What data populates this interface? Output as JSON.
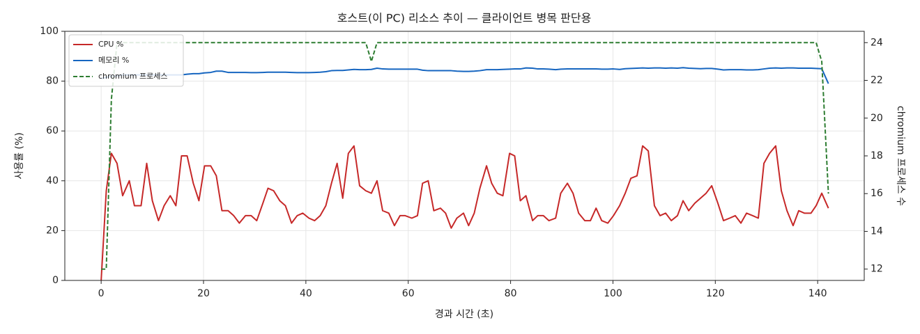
{
  "chart_data": {
    "type": "line",
    "title": "호스트(이 PC) 리소스 추이 — 클라이언트 병목 판단용",
    "x_label": "경과 시간 (초)",
    "y_label": "사용률 (%)",
    "y2_label": "chromium 프로세스 수",
    "x": [
      0,
      1,
      2,
      3.1,
      4.2,
      5.5,
      6.5,
      7.8,
      8.9,
      10,
      11.2,
      12.3,
      13.5,
      14.6,
      15.7,
      16.8,
      18,
      19.1,
      20.2,
      21.4,
      22.5,
      23.6,
      24.8,
      25.9,
      27,
      28.2,
      29.3,
      30.4,
      31.6,
      32.6,
      33.7,
      34.9,
      36,
      37.2,
      38.3,
      39.4,
      40.6,
      41.7,
      42.8,
      43.9,
      45,
      46.1,
      47.2,
      48.3,
      49.4,
      50.5,
      51.7,
      52.8,
      53.9,
      55,
      56.2,
      57.3,
      58.4,
      59.4,
      60.7,
      61.8,
      62.8,
      63.9,
      65,
      66.3,
      67.3,
      68.4,
      69.5,
      70.8,
      71.8,
      72.9,
      74,
      75.3,
      76.3,
      77.4,
      78.5,
      79.8,
      80.8,
      81.9,
      83,
      84.3,
      85.3,
      86.4,
      87.5,
      88.8,
      89.8,
      91.1,
      92.2,
      93.3,
      94.5,
      95.6,
      96.7,
      97.8,
      99,
      100.1,
      101.3,
      102.4,
      103.5,
      104.7,
      105.8,
      106.9,
      108.1,
      109.2,
      110.3,
      111.4,
      112.6,
      113.7,
      114.8,
      116,
      117.1,
      118.2,
      119.3,
      120.5,
      121.6,
      122.8,
      123.9,
      125,
      126.1,
      127.3,
      128.4,
      129.5,
      130.6,
      131.8,
      132.9,
      134,
      135.2,
      136.3,
      137.4,
      138.7,
      139.7,
      140.8,
      142.1
    ],
    "series": [
      {
        "name": "CPU %",
        "color": "#c62828",
        "linestyle": "solid",
        "values": [
          0,
          36,
          51,
          47,
          34,
          40,
          30,
          30,
          47,
          32,
          24,
          30,
          34,
          30,
          50,
          50,
          39,
          32,
          46,
          46,
          42,
          28,
          28,
          26,
          23,
          26,
          26,
          24,
          31,
          37,
          36,
          32,
          30,
          23,
          26,
          27,
          25,
          24,
          26,
          30,
          39,
          47,
          33,
          51,
          54,
          38,
          36,
          35,
          40,
          28,
          27,
          22,
          26,
          26,
          25,
          26,
          39,
          40,
          28,
          29,
          27,
          21,
          25,
          27,
          22,
          27,
          37,
          46,
          39,
          35,
          34,
          51,
          50,
          32,
          34,
          24,
          26,
          26,
          24,
          25,
          35,
          39,
          35,
          27,
          24,
          24,
          29,
          24,
          23,
          26,
          30,
          35,
          41,
          42,
          54,
          52,
          30,
          26,
          27,
          24,
          26,
          32,
          28,
          31,
          33,
          35,
          38,
          31,
          24,
          25,
          26,
          23,
          27,
          26,
          25,
          47,
          51,
          54,
          36,
          28,
          22,
          28,
          27,
          27,
          30,
          35,
          29
        ]
      },
      {
        "name": "메모리 %",
        "color": "#1565c0",
        "linestyle": "solid",
        "values": [
          81,
          81.5,
          82,
          82,
          82.5,
          82.5,
          82.5,
          82.5,
          82.5,
          82.5,
          82.5,
          82.5,
          82.5,
          82.5,
          82.5,
          82.8,
          83,
          83,
          83.3,
          83.5,
          84,
          84,
          83.5,
          83.5,
          83.5,
          83.5,
          83.4,
          83.4,
          83.5,
          83.6,
          83.6,
          83.6,
          83.6,
          83.5,
          83.4,
          83.4,
          83.4,
          83.5,
          83.6,
          83.8,
          84.2,
          84.3,
          84.3,
          84.5,
          84.7,
          84.6,
          84.6,
          84.7,
          85.2,
          84.9,
          84.8,
          84.8,
          84.8,
          84.8,
          84.8,
          84.8,
          84.4,
          84.2,
          84.2,
          84.2,
          84.2,
          84.2,
          84,
          83.9,
          83.9,
          84,
          84.2,
          84.6,
          84.6,
          84.6,
          84.7,
          84.8,
          84.9,
          84.9,
          85.3,
          85.2,
          84.9,
          84.9,
          84.8,
          84.6,
          84.8,
          84.9,
          84.9,
          84.9,
          84.9,
          84.9,
          84.9,
          84.8,
          84.8,
          84.9,
          84.7,
          85,
          85.1,
          85.2,
          85.3,
          85.2,
          85.3,
          85.3,
          85.2,
          85.3,
          85.2,
          85.4,
          85.2,
          85.1,
          85,
          85.1,
          85.1,
          84.8,
          84.5,
          84.6,
          84.6,
          84.6,
          84.5,
          84.5,
          84.6,
          84.9,
          85.2,
          85.3,
          85.2,
          85.3,
          85.3,
          85.2,
          85.2,
          85.2,
          85.1,
          85,
          79
        ]
      },
      {
        "name": "chromium 프로세스",
        "color": "#2e7d32",
        "linestyle": "dashed",
        "axis": "y2",
        "values": [
          12,
          12,
          21,
          24,
          24,
          24,
          24,
          24,
          24,
          24,
          24,
          24,
          24,
          24,
          24,
          24,
          24,
          24,
          24,
          24,
          24,
          24,
          24,
          24,
          24,
          24,
          24,
          24,
          24,
          24,
          24,
          24,
          24,
          24,
          24,
          24,
          24,
          24,
          24,
          24,
          24,
          24,
          24,
          24,
          24,
          24,
          24,
          23,
          24,
          24,
          24,
          24,
          24,
          24,
          24,
          24,
          24,
          24,
          24,
          24,
          24,
          24,
          24,
          24,
          24,
          24,
          24,
          24,
          24,
          24,
          24,
          24,
          24,
          24,
          24,
          24,
          24,
          24,
          24,
          24,
          24,
          24,
          24,
          24,
          24,
          24,
          24,
          24,
          24,
          24,
          24,
          24,
          24,
          24,
          24,
          24,
          24,
          24,
          24,
          24,
          24,
          24,
          24,
          24,
          24,
          24,
          24,
          24,
          24,
          24,
          24,
          24,
          24,
          24,
          24,
          24,
          24,
          24,
          24,
          24,
          24,
          24,
          24,
          24,
          24,
          23,
          16
        ]
      }
    ],
    "xlim": [
      -7.1,
      149.1
    ],
    "xticks": [
      0,
      20,
      40,
      60,
      80,
      100,
      120,
      140
    ],
    "ylim": [
      0,
      100
    ],
    "yticks": [
      0,
      20,
      40,
      60,
      80,
      100
    ],
    "y2lim": [
      11.4,
      24.6
    ],
    "y2ticks": [
      12,
      14,
      16,
      18,
      20,
      22,
      24
    ],
    "grid": true,
    "legend": "upper-left"
  }
}
